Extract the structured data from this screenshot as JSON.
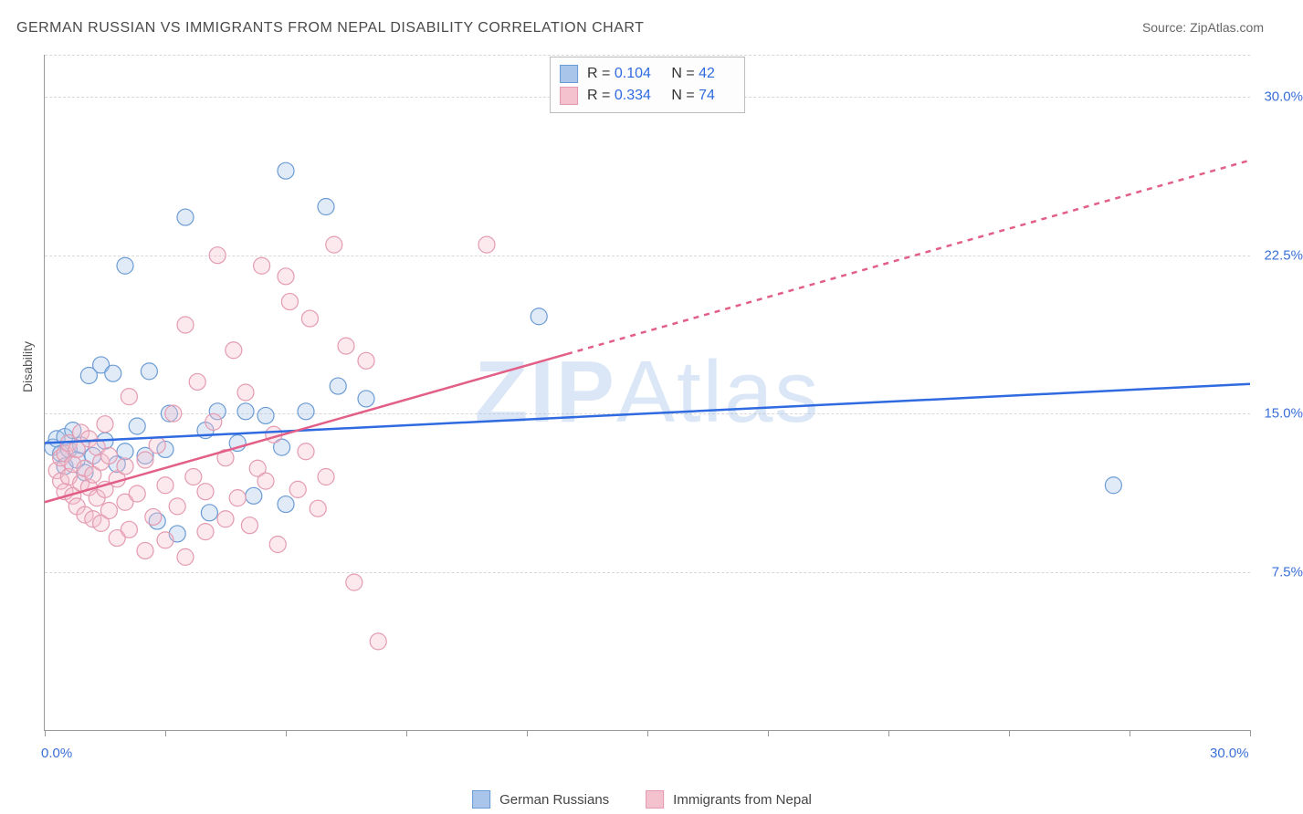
{
  "type": "scatter",
  "title": "GERMAN RUSSIAN VS IMMIGRANTS FROM NEPAL DISABILITY CORRELATION CHART",
  "source": "Source: ZipAtlas.com",
  "watermark": {
    "text_a": "ZIP",
    "text_b": "Atlas"
  },
  "ylabel": "Disability",
  "axes": {
    "x": {
      "min": 0,
      "max": 30,
      "ticks": [
        0,
        3,
        6,
        9,
        12,
        15,
        18,
        21,
        24,
        27,
        30
      ],
      "labeled": {
        "0": "0.0%",
        "30": "30.0%"
      }
    },
    "y": {
      "min": 0,
      "max": 32,
      "grid": [
        7.5,
        15.0,
        22.5,
        30.0
      ],
      "labels": {
        "7.5": "7.5%",
        "15.0": "15.0%",
        "22.5": "22.5%",
        "30.0": "30.0%"
      }
    }
  },
  "colors": {
    "blue_stroke": "#6b9bd4",
    "blue_fill": "#a9c6ea",
    "pink_stroke": "#e49ab0",
    "pink_fill": "#f4c1cf",
    "blue_line": "#2f6ae0",
    "pink_line": "#e25f87",
    "grid": "#d8d8d8",
    "axis": "#9a9a9a",
    "text": "#4a4a4a",
    "tick_text": "#3a6fd8"
  },
  "marker_radius": 9,
  "line_width": 2.5,
  "series": [
    {
      "id": "blue",
      "name": "German Russians",
      "R": "0.104",
      "N": "42",
      "trend": {
        "x1": 0,
        "y1": 13.6,
        "x2": 30,
        "y2": 16.4,
        "dash_after_x": null
      },
      "points": [
        [
          0.2,
          13.4
        ],
        [
          0.3,
          13.8
        ],
        [
          0.4,
          13.1
        ],
        [
          0.5,
          12.5
        ],
        [
          0.5,
          13.9
        ],
        [
          0.6,
          13.3
        ],
        [
          0.7,
          14.2
        ],
        [
          0.8,
          12.8
        ],
        [
          0.9,
          13.5
        ],
        [
          1.0,
          12.2
        ],
        [
          1.1,
          16.8
        ],
        [
          1.2,
          13.0
        ],
        [
          1.4,
          17.3
        ],
        [
          1.5,
          13.7
        ],
        [
          1.7,
          16.9
        ],
        [
          1.8,
          12.6
        ],
        [
          2.0,
          13.2
        ],
        [
          2.0,
          22.0
        ],
        [
          2.3,
          14.4
        ],
        [
          2.5,
          13.0
        ],
        [
          2.6,
          17.0
        ],
        [
          2.8,
          9.9
        ],
        [
          3.0,
          13.3
        ],
        [
          3.1,
          15.0
        ],
        [
          3.3,
          9.3
        ],
        [
          3.5,
          24.3
        ],
        [
          4.0,
          14.2
        ],
        [
          4.1,
          10.3
        ],
        [
          4.3,
          15.1
        ],
        [
          4.8,
          13.6
        ],
        [
          5.0,
          15.1
        ],
        [
          5.2,
          11.1
        ],
        [
          5.5,
          14.9
        ],
        [
          6.0,
          26.5
        ],
        [
          6.0,
          10.7
        ],
        [
          6.5,
          15.1
        ],
        [
          7.0,
          24.8
        ],
        [
          7.3,
          16.3
        ],
        [
          8.0,
          15.7
        ],
        [
          12.3,
          19.6
        ],
        [
          26.6,
          11.6
        ],
        [
          5.9,
          13.4
        ]
      ]
    },
    {
      "id": "pink",
      "name": "Immigrants from Nepal",
      "R": "0.334",
      "N": "74",
      "trend": {
        "x1": 0,
        "y1": 10.8,
        "x2": 30,
        "y2": 27.0,
        "dash_after_x": 13.0
      },
      "points": [
        [
          0.3,
          12.3
        ],
        [
          0.4,
          11.8
        ],
        [
          0.4,
          12.9
        ],
        [
          0.5,
          11.3
        ],
        [
          0.5,
          13.1
        ],
        [
          0.6,
          12.0
        ],
        [
          0.6,
          13.6
        ],
        [
          0.7,
          11.1
        ],
        [
          0.7,
          12.6
        ],
        [
          0.8,
          10.6
        ],
        [
          0.8,
          13.3
        ],
        [
          0.9,
          11.7
        ],
        [
          0.9,
          14.1
        ],
        [
          1.0,
          10.2
        ],
        [
          1.0,
          12.4
        ],
        [
          1.1,
          11.5
        ],
        [
          1.1,
          13.8
        ],
        [
          1.2,
          10.0
        ],
        [
          1.2,
          12.1
        ],
        [
          1.3,
          11.0
        ],
        [
          1.3,
          13.4
        ],
        [
          1.4,
          9.8
        ],
        [
          1.4,
          12.7
        ],
        [
          1.5,
          11.4
        ],
        [
          1.5,
          14.5
        ],
        [
          1.6,
          10.4
        ],
        [
          1.6,
          13.0
        ],
        [
          1.8,
          9.1
        ],
        [
          1.8,
          11.9
        ],
        [
          2.0,
          10.8
        ],
        [
          2.0,
          12.5
        ],
        [
          2.1,
          9.5
        ],
        [
          2.1,
          15.8
        ],
        [
          2.3,
          11.2
        ],
        [
          2.5,
          8.5
        ],
        [
          2.5,
          12.8
        ],
        [
          2.7,
          10.1
        ],
        [
          2.8,
          13.5
        ],
        [
          3.0,
          9.0
        ],
        [
          3.0,
          11.6
        ],
        [
          3.2,
          15.0
        ],
        [
          3.3,
          10.6
        ],
        [
          3.5,
          19.2
        ],
        [
          3.5,
          8.2
        ],
        [
          3.7,
          12.0
        ],
        [
          3.8,
          16.5
        ],
        [
          4.0,
          9.4
        ],
        [
          4.0,
          11.3
        ],
        [
          4.2,
          14.6
        ],
        [
          4.3,
          22.5
        ],
        [
          4.5,
          10.0
        ],
        [
          4.5,
          12.9
        ],
        [
          4.7,
          18.0
        ],
        [
          4.8,
          11.0
        ],
        [
          5.0,
          16.0
        ],
        [
          5.1,
          9.7
        ],
        [
          5.3,
          12.4
        ],
        [
          5.4,
          22.0
        ],
        [
          5.5,
          11.8
        ],
        [
          5.7,
          14.0
        ],
        [
          5.8,
          8.8
        ],
        [
          6.0,
          21.5
        ],
        [
          6.1,
          20.3
        ],
        [
          6.3,
          11.4
        ],
        [
          6.5,
          13.2
        ],
        [
          6.6,
          19.5
        ],
        [
          6.8,
          10.5
        ],
        [
          7.0,
          12.0
        ],
        [
          7.2,
          23.0
        ],
        [
          7.5,
          18.2
        ],
        [
          7.7,
          7.0
        ],
        [
          8.0,
          17.5
        ],
        [
          8.3,
          4.2
        ],
        [
          11.0,
          23.0
        ]
      ]
    }
  ],
  "stats_legend_layout": {
    "R_label": "R =",
    "N_label": "N ="
  },
  "bottom_legend": [
    "German Russians",
    "Immigrants from Nepal"
  ]
}
